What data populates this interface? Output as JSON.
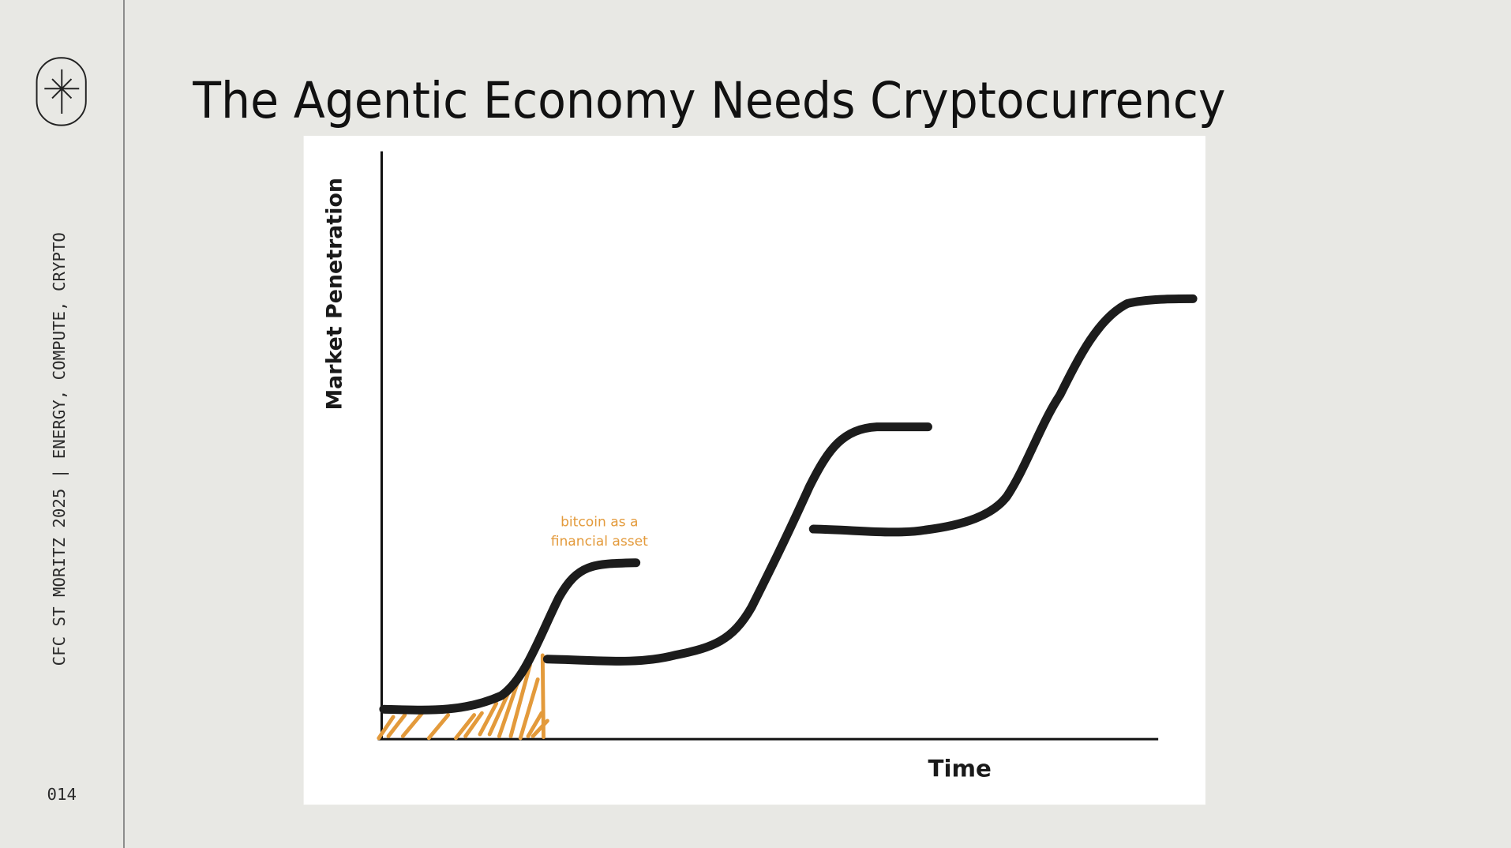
{
  "sidebar": {
    "tagline": "CFC ST MORITZ 2025 | ENERGY, COMPUTE, CRYPTO",
    "page_number": "014"
  },
  "slide": {
    "title": "The Agentic Economy Needs Cryptocurrency"
  },
  "diagram": {
    "y_axis_label": "Market Penetration",
    "x_axis_label": "Time",
    "annotation": [
      "bitcoin as a",
      "financial asset"
    ]
  }
}
